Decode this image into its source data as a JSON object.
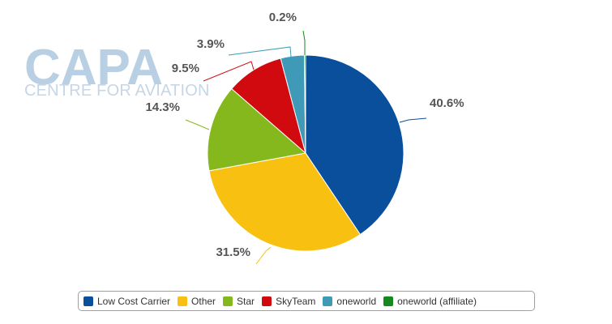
{
  "watermark": {
    "brand": "CAPA",
    "subtitle": "CENTRE FOR AVIATION"
  },
  "chart_data": {
    "type": "pie",
    "title": "",
    "start_angle_deg": 0,
    "categories": [
      "Low Cost Carrier",
      "Other",
      "Star",
      "SkyTeam",
      "oneworld",
      "oneworld (affiliate)"
    ],
    "values": [
      40.6,
      31.5,
      14.3,
      9.5,
      3.9,
      0.2
    ],
    "labels": [
      "40.6%",
      "31.5%",
      "14.3%",
      "9.5%",
      "3.9%",
      "0.2%"
    ],
    "colors": [
      "#0a4f9c",
      "#f8c010",
      "#84b81c",
      "#d10a10",
      "#3f9ab8",
      "#138a1b"
    ],
    "legend_position": "bottom"
  }
}
